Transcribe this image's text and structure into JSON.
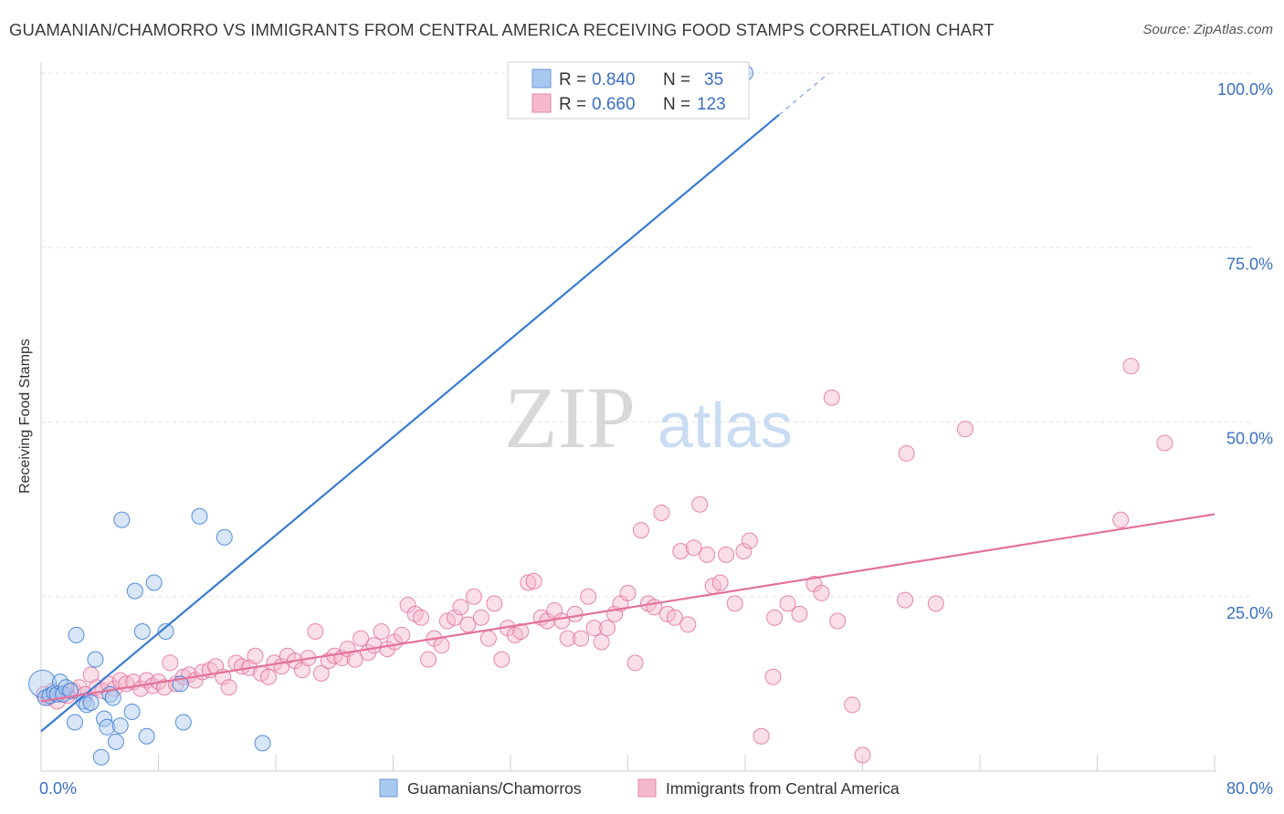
{
  "header": {
    "title": "GUAMANIAN/CHAMORRO VS IMMIGRANTS FROM CENTRAL AMERICA RECEIVING FOOD STAMPS CORRELATION CHART",
    "source": "Source: ZipAtlas.com"
  },
  "watermark": {
    "zip": "ZIP",
    "atlas": "atlas"
  },
  "stats_legend": {
    "rows": [
      {
        "r_label": "R =",
        "r_value": "0.840",
        "n_label": "N =",
        "n_value": "35"
      },
      {
        "r_label": "R =",
        "r_value": "0.660",
        "n_label": "N =",
        "n_value": "123"
      }
    ]
  },
  "chart_data": {
    "type": "scatter",
    "title": "GUAMANIAN/CHAMORRO VS IMMIGRANTS FROM CENTRAL AMERICA RECEIVING FOOD STAMPS CORRELATION CHART",
    "xlabel": "",
    "ylabel": "Receiving Food Stamps",
    "xlim": [
      0,
      80
    ],
    "ylim": [
      0,
      100
    ],
    "x_tick_labels": [
      "0.0%",
      "80.0%"
    ],
    "y_ticks": [
      25,
      50,
      75,
      100
    ],
    "y_tick_labels": [
      "25.0%",
      "50.0%",
      "75.0%",
      "100.0%"
    ],
    "grid": true,
    "legend_position": "bottom-center",
    "colors": {
      "blue": "#3a7bd5",
      "blue_fill": "#a8c8f0",
      "pink": "#e3729c",
      "pink_fill": "#f5b8cc",
      "axis_text": "#3a6fc4"
    },
    "series": [
      {
        "name": "Guamanians/Chamorros",
        "color": "blue",
        "r": 0.84,
        "n": 35,
        "trend": {
          "x": [
            0,
            50.3
          ],
          "y": [
            5.7,
            94.0
          ],
          "dashed_to": [
            53.7,
            100.0
          ]
        },
        "points": [
          [
            0.1,
            12.5
          ],
          [
            0.3,
            10.5
          ],
          [
            0.6,
            10.8
          ],
          [
            0.9,
            11.2
          ],
          [
            1.1,
            11.0
          ],
          [
            1.3,
            12.8
          ],
          [
            1.5,
            11.0
          ],
          [
            1.7,
            12.0
          ],
          [
            2.0,
            11.5
          ],
          [
            2.3,
            7.0
          ],
          [
            2.4,
            19.5
          ],
          [
            2.9,
            10.0
          ],
          [
            3.1,
            9.5
          ],
          [
            3.4,
            9.8
          ],
          [
            3.7,
            16.0
          ],
          [
            4.1,
            2.0
          ],
          [
            4.3,
            7.5
          ],
          [
            4.5,
            6.3
          ],
          [
            4.7,
            11.0
          ],
          [
            4.9,
            10.5
          ],
          [
            5.1,
            4.2
          ],
          [
            5.4,
            6.5
          ],
          [
            5.5,
            36.0
          ],
          [
            6.2,
            8.5
          ],
          [
            6.4,
            25.8
          ],
          [
            6.9,
            20.0
          ],
          [
            7.2,
            5.0
          ],
          [
            7.7,
            27.0
          ],
          [
            8.5,
            20.0
          ],
          [
            9.5,
            12.5
          ],
          [
            9.7,
            7.0
          ],
          [
            10.8,
            36.5
          ],
          [
            12.5,
            33.5
          ],
          [
            15.1,
            4.0
          ],
          [
            48.0,
            100.0
          ]
        ]
      },
      {
        "name": "Immigrants from Central America",
        "color": "pink",
        "r": 0.66,
        "n": 123,
        "trend": {
          "x": [
            0,
            80.0
          ],
          "y": [
            10.0,
            36.8
          ]
        },
        "points": [
          [
            0.2,
            11.0
          ],
          [
            0.5,
            10.5
          ],
          [
            0.8,
            11.5
          ],
          [
            1.1,
            10.0
          ],
          [
            1.4,
            11.2
          ],
          [
            1.8,
            10.8
          ],
          [
            2.2,
            11.5
          ],
          [
            2.6,
            12.0
          ],
          [
            3.0,
            11.0
          ],
          [
            3.4,
            13.8
          ],
          [
            3.8,
            12.0
          ],
          [
            4.2,
            11.5
          ],
          [
            4.6,
            12.5
          ],
          [
            5.0,
            11.8
          ],
          [
            5.4,
            13.0
          ],
          [
            5.8,
            12.5
          ],
          [
            6.3,
            12.8
          ],
          [
            6.8,
            11.8
          ],
          [
            7.2,
            13.0
          ],
          [
            7.6,
            12.2
          ],
          [
            8.0,
            12.8
          ],
          [
            8.4,
            12.0
          ],
          [
            8.8,
            15.5
          ],
          [
            9.2,
            12.5
          ],
          [
            9.7,
            13.5
          ],
          [
            10.1,
            13.8
          ],
          [
            10.5,
            13.0
          ],
          [
            11.0,
            14.2
          ],
          [
            11.5,
            14.5
          ],
          [
            11.9,
            15.0
          ],
          [
            12.4,
            13.5
          ],
          [
            12.8,
            12.0
          ],
          [
            13.3,
            15.5
          ],
          [
            13.7,
            15.0
          ],
          [
            14.2,
            14.8
          ],
          [
            14.6,
            16.5
          ],
          [
            15.0,
            14.0
          ],
          [
            15.5,
            13.5
          ],
          [
            15.9,
            15.5
          ],
          [
            16.4,
            15.0
          ],
          [
            16.8,
            16.5
          ],
          [
            17.3,
            15.8
          ],
          [
            17.8,
            14.5
          ],
          [
            18.2,
            16.2
          ],
          [
            18.7,
            20.0
          ],
          [
            19.1,
            14.0
          ],
          [
            19.6,
            15.8
          ],
          [
            20.0,
            16.5
          ],
          [
            20.5,
            16.2
          ],
          [
            20.9,
            17.5
          ],
          [
            21.4,
            16.0
          ],
          [
            21.8,
            19.0
          ],
          [
            22.3,
            17.0
          ],
          [
            22.7,
            18.0
          ],
          [
            23.2,
            20.0
          ],
          [
            23.6,
            17.5
          ],
          [
            24.1,
            18.5
          ],
          [
            24.6,
            19.5
          ],
          [
            25.0,
            23.8
          ],
          [
            25.5,
            22.5
          ],
          [
            25.9,
            22.0
          ],
          [
            26.4,
            16.0
          ],
          [
            26.8,
            19.0
          ],
          [
            27.3,
            18.0
          ],
          [
            27.7,
            21.5
          ],
          [
            28.2,
            22.0
          ],
          [
            28.6,
            23.5
          ],
          [
            29.1,
            21.0
          ],
          [
            29.5,
            25.0
          ],
          [
            30.0,
            22.0
          ],
          [
            30.5,
            19.0
          ],
          [
            30.9,
            24.0
          ],
          [
            31.4,
            16.0
          ],
          [
            31.8,
            20.5
          ],
          [
            32.3,
            19.5
          ],
          [
            32.7,
            20.0
          ],
          [
            33.2,
            27.0
          ],
          [
            33.6,
            27.2
          ],
          [
            34.1,
            22.0
          ],
          [
            34.5,
            21.5
          ],
          [
            35.0,
            23.0
          ],
          [
            35.5,
            21.5
          ],
          [
            35.9,
            19.0
          ],
          [
            36.4,
            22.5
          ],
          [
            36.8,
            19.0
          ],
          [
            37.3,
            25.0
          ],
          [
            37.7,
            20.5
          ],
          [
            38.2,
            18.5
          ],
          [
            38.6,
            20.5
          ],
          [
            39.1,
            22.5
          ],
          [
            39.5,
            24.0
          ],
          [
            40.0,
            25.5
          ],
          [
            40.5,
            15.5
          ],
          [
            40.9,
            34.5
          ],
          [
            41.4,
            24.0
          ],
          [
            41.8,
            23.5
          ],
          [
            42.3,
            37.0
          ],
          [
            42.7,
            22.5
          ],
          [
            43.2,
            22.0
          ],
          [
            43.6,
            31.5
          ],
          [
            44.1,
            21.0
          ],
          [
            44.5,
            32.0
          ],
          [
            44.9,
            38.2
          ],
          [
            45.4,
            31.0
          ],
          [
            45.8,
            26.5
          ],
          [
            46.3,
            27.0
          ],
          [
            46.7,
            31.0
          ],
          [
            47.3,
            24.0
          ],
          [
            47.9,
            31.5
          ],
          [
            48.3,
            33.0
          ],
          [
            49.1,
            5.0
          ],
          [
            49.9,
            13.5
          ],
          [
            50.0,
            22.0
          ],
          [
            50.9,
            24.0
          ],
          [
            51.7,
            22.5
          ],
          [
            52.7,
            26.8
          ],
          [
            53.2,
            25.5
          ],
          [
            53.9,
            53.5
          ],
          [
            54.3,
            21.5
          ],
          [
            55.3,
            9.5
          ],
          [
            56.0,
            2.3
          ],
          [
            58.9,
            24.5
          ],
          [
            59.0,
            45.5
          ],
          [
            61.0,
            24.0
          ],
          [
            63.0,
            49.0
          ],
          [
            73.6,
            36.0
          ],
          [
            74.3,
            58.0
          ],
          [
            76.6,
            47.0
          ]
        ]
      }
    ]
  },
  "bottom_legend": {
    "items": [
      {
        "label": "Guamanians/Chamorros"
      },
      {
        "label": "Immigrants from Central America"
      }
    ]
  }
}
